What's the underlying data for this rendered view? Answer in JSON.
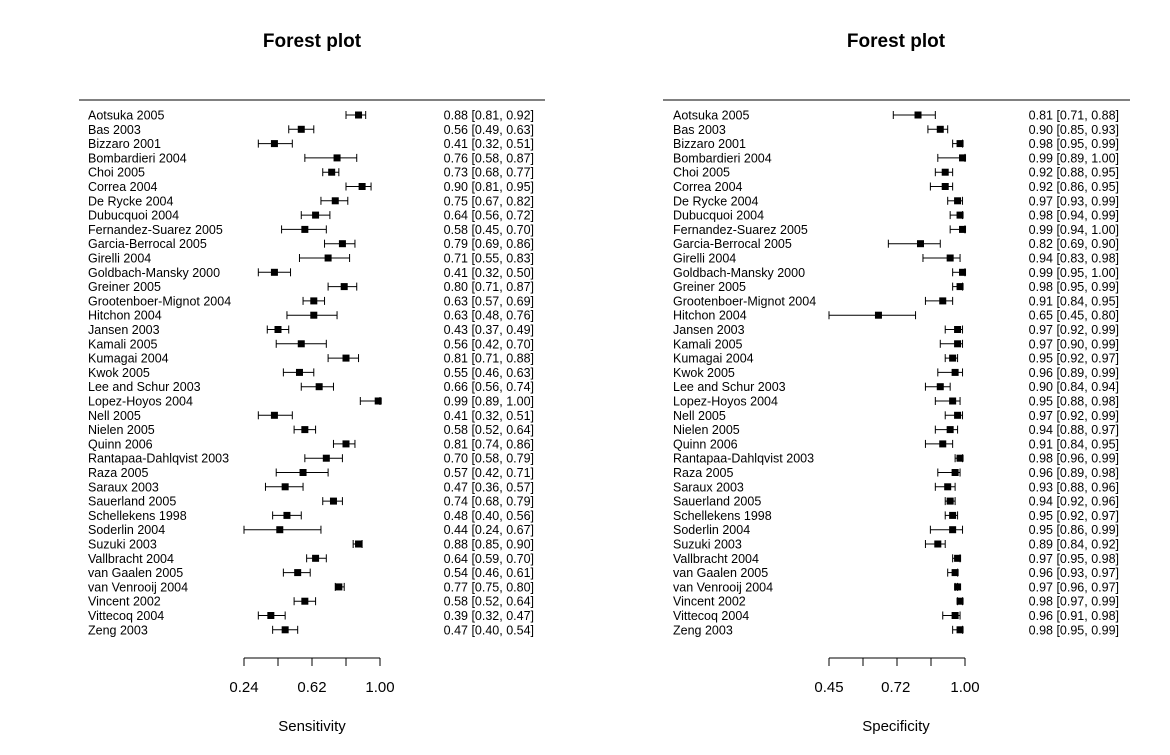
{
  "chart_data": [
    {
      "type": "forest",
      "title": "Forest plot",
      "xlabel": "Sensitivity",
      "xlim": [
        0.24,
        1.0
      ],
      "tick_labels": [
        "0.24",
        "0.62",
        "1.00"
      ],
      "tick_values": [
        0.24,
        0.43,
        0.62,
        0.81,
        1.0
      ],
      "studies": [
        {
          "name": "Aotsuka 2005",
          "est": 0.88,
          "lo": 0.81,
          "hi": 0.92,
          "label": "0.88 [0.81, 0.92]"
        },
        {
          "name": "Bas 2003",
          "est": 0.56,
          "lo": 0.49,
          "hi": 0.63,
          "label": "0.56 [0.49, 0.63]"
        },
        {
          "name": "Bizzaro 2001",
          "est": 0.41,
          "lo": 0.32,
          "hi": 0.51,
          "label": "0.41 [0.32, 0.51]"
        },
        {
          "name": "Bombardieri 2004",
          "est": 0.76,
          "lo": 0.58,
          "hi": 0.87,
          "label": "0.76 [0.58, 0.87]"
        },
        {
          "name": "Choi 2005",
          "est": 0.73,
          "lo": 0.68,
          "hi": 0.77,
          "label": "0.73 [0.68, 0.77]"
        },
        {
          "name": "Correa 2004",
          "est": 0.9,
          "lo": 0.81,
          "hi": 0.95,
          "label": "0.90 [0.81, 0.95]"
        },
        {
          "name": "De Rycke 2004",
          "est": 0.75,
          "lo": 0.67,
          "hi": 0.82,
          "label": "0.75 [0.67, 0.82]"
        },
        {
          "name": "Dubucquoi 2004",
          "est": 0.64,
          "lo": 0.56,
          "hi": 0.72,
          "label": "0.64 [0.56, 0.72]"
        },
        {
          "name": "Fernandez-Suarez 2005",
          "est": 0.58,
          "lo": 0.45,
          "hi": 0.7,
          "label": "0.58 [0.45, 0.70]"
        },
        {
          "name": "Garcia-Berrocal 2005",
          "est": 0.79,
          "lo": 0.69,
          "hi": 0.86,
          "label": "0.79 [0.69, 0.86]"
        },
        {
          "name": "Girelli 2004",
          "est": 0.71,
          "lo": 0.55,
          "hi": 0.83,
          "label": "0.71 [0.55, 0.83]"
        },
        {
          "name": "Goldbach-Mansky 2000",
          "est": 0.41,
          "lo": 0.32,
          "hi": 0.5,
          "label": "0.41 [0.32, 0.50]"
        },
        {
          "name": "Greiner 2005",
          "est": 0.8,
          "lo": 0.71,
          "hi": 0.87,
          "label": "0.80 [0.71, 0.87]"
        },
        {
          "name": "Grootenboer-Mignot 2004",
          "est": 0.63,
          "lo": 0.57,
          "hi": 0.69,
          "label": "0.63 [0.57, 0.69]"
        },
        {
          "name": "Hitchon 2004",
          "est": 0.63,
          "lo": 0.48,
          "hi": 0.76,
          "label": "0.63 [0.48, 0.76]"
        },
        {
          "name": "Jansen 2003",
          "est": 0.43,
          "lo": 0.37,
          "hi": 0.49,
          "label": "0.43 [0.37, 0.49]"
        },
        {
          "name": "Kamali 2005",
          "est": 0.56,
          "lo": 0.42,
          "hi": 0.7,
          "label": "0.56 [0.42, 0.70]"
        },
        {
          "name": "Kumagai 2004",
          "est": 0.81,
          "lo": 0.71,
          "hi": 0.88,
          "label": "0.81 [0.71, 0.88]"
        },
        {
          "name": "Kwok 2005",
          "est": 0.55,
          "lo": 0.46,
          "hi": 0.63,
          "label": "0.55 [0.46, 0.63]"
        },
        {
          "name": "Lee and Schur 2003",
          "est": 0.66,
          "lo": 0.56,
          "hi": 0.74,
          "label": "0.66 [0.56, 0.74]"
        },
        {
          "name": "Lopez-Hoyos 2004",
          "est": 0.99,
          "lo": 0.89,
          "hi": 1.0,
          "label": "0.99 [0.89, 1.00]"
        },
        {
          "name": "Nell 2005",
          "est": 0.41,
          "lo": 0.32,
          "hi": 0.51,
          "label": "0.41 [0.32, 0.51]"
        },
        {
          "name": "Nielen 2005",
          "est": 0.58,
          "lo": 0.52,
          "hi": 0.64,
          "label": "0.58 [0.52, 0.64]"
        },
        {
          "name": "Quinn 2006",
          "est": 0.81,
          "lo": 0.74,
          "hi": 0.86,
          "label": "0.81 [0.74, 0.86]"
        },
        {
          "name": "Rantapaa-Dahlqvist 2003",
          "est": 0.7,
          "lo": 0.58,
          "hi": 0.79,
          "label": "0.70 [0.58, 0.79]"
        },
        {
          "name": "Raza 2005",
          "est": 0.57,
          "lo": 0.42,
          "hi": 0.71,
          "label": "0.57 [0.42, 0.71]"
        },
        {
          "name": "Saraux 2003",
          "est": 0.47,
          "lo": 0.36,
          "hi": 0.57,
          "label": "0.47 [0.36, 0.57]"
        },
        {
          "name": "Sauerland 2005",
          "est": 0.74,
          "lo": 0.68,
          "hi": 0.79,
          "label": "0.74 [0.68, 0.79]"
        },
        {
          "name": "Schellekens 1998",
          "est": 0.48,
          "lo": 0.4,
          "hi": 0.56,
          "label": "0.48 [0.40, 0.56]"
        },
        {
          "name": "Soderlin 2004",
          "est": 0.44,
          "lo": 0.24,
          "hi": 0.67,
          "label": "0.44 [0.24, 0.67]"
        },
        {
          "name": "Suzuki 2003",
          "est": 0.88,
          "lo": 0.85,
          "hi": 0.9,
          "label": "0.88 [0.85, 0.90]"
        },
        {
          "name": "Vallbracht 2004",
          "est": 0.64,
          "lo": 0.59,
          "hi": 0.7,
          "label": "0.64 [0.59, 0.70]"
        },
        {
          "name": "van Gaalen 2005",
          "est": 0.54,
          "lo": 0.46,
          "hi": 0.61,
          "label": "0.54 [0.46, 0.61]"
        },
        {
          "name": "van Venrooij 2004",
          "est": 0.77,
          "lo": 0.75,
          "hi": 0.8,
          "label": "0.77 [0.75, 0.80]"
        },
        {
          "name": "Vincent 2002",
          "est": 0.58,
          "lo": 0.52,
          "hi": 0.64,
          "label": "0.58 [0.52, 0.64]"
        },
        {
          "name": "Vittecoq 2004",
          "est": 0.39,
          "lo": 0.32,
          "hi": 0.47,
          "label": "0.39 [0.32, 0.47]"
        },
        {
          "name": "Zeng 2003",
          "est": 0.47,
          "lo": 0.4,
          "hi": 0.54,
          "label": "0.47 [0.40, 0.54]"
        }
      ]
    },
    {
      "type": "forest",
      "title": "Forest plot",
      "xlabel": "Specificity",
      "xlim": [
        0.45,
        1.0
      ],
      "tick_labels": [
        "0.45",
        "0.72",
        "1.00"
      ],
      "tick_values": [
        0.45,
        0.5875,
        0.725,
        0.8625,
        1.0
      ],
      "studies": [
        {
          "name": "Aotsuka 2005",
          "est": 0.81,
          "lo": 0.71,
          "hi": 0.88,
          "label": "0.81 [0.71, 0.88]"
        },
        {
          "name": "Bas 2003",
          "est": 0.9,
          "lo": 0.85,
          "hi": 0.93,
          "label": "0.90 [0.85, 0.93]"
        },
        {
          "name": "Bizzaro 2001",
          "est": 0.98,
          "lo": 0.95,
          "hi": 0.99,
          "label": "0.98 [0.95, 0.99]"
        },
        {
          "name": "Bombardieri 2004",
          "est": 0.99,
          "lo": 0.89,
          "hi": 1.0,
          "label": "0.99 [0.89, 1.00]"
        },
        {
          "name": "Choi 2005",
          "est": 0.92,
          "lo": 0.88,
          "hi": 0.95,
          "label": "0.92 [0.88, 0.95]"
        },
        {
          "name": "Correa 2004",
          "est": 0.92,
          "lo": 0.86,
          "hi": 0.95,
          "label": "0.92 [0.86, 0.95]"
        },
        {
          "name": "De Rycke 2004",
          "est": 0.97,
          "lo": 0.93,
          "hi": 0.99,
          "label": "0.97 [0.93, 0.99]"
        },
        {
          "name": "Dubucquoi 2004",
          "est": 0.98,
          "lo": 0.94,
          "hi": 0.99,
          "label": "0.98 [0.94, 0.99]"
        },
        {
          "name": "Fernandez-Suarez 2005",
          "est": 0.99,
          "lo": 0.94,
          "hi": 1.0,
          "label": "0.99 [0.94, 1.00]"
        },
        {
          "name": "Garcia-Berrocal 2005",
          "est": 0.82,
          "lo": 0.69,
          "hi": 0.9,
          "label": "0.82 [0.69, 0.90]"
        },
        {
          "name": "Girelli 2004",
          "est": 0.94,
          "lo": 0.83,
          "hi": 0.98,
          "label": "0.94 [0.83, 0.98]"
        },
        {
          "name": "Goldbach-Mansky 2000",
          "est": 0.99,
          "lo": 0.95,
          "hi": 1.0,
          "label": "0.99 [0.95, 1.00]"
        },
        {
          "name": "Greiner 2005",
          "est": 0.98,
          "lo": 0.95,
          "hi": 0.99,
          "label": "0.98 [0.95, 0.99]"
        },
        {
          "name": "Grootenboer-Mignot 2004",
          "est": 0.91,
          "lo": 0.84,
          "hi": 0.95,
          "label": "0.91 [0.84, 0.95]"
        },
        {
          "name": "Hitchon 2004",
          "est": 0.65,
          "lo": 0.45,
          "hi": 0.8,
          "label": "0.65 [0.45, 0.80]"
        },
        {
          "name": "Jansen 2003",
          "est": 0.97,
          "lo": 0.92,
          "hi": 0.99,
          "label": "0.97 [0.92, 0.99]"
        },
        {
          "name": "Kamali 2005",
          "est": 0.97,
          "lo": 0.9,
          "hi": 0.99,
          "label": "0.97 [0.90, 0.99]"
        },
        {
          "name": "Kumagai 2004",
          "est": 0.95,
          "lo": 0.92,
          "hi": 0.97,
          "label": "0.95 [0.92, 0.97]"
        },
        {
          "name": "Kwok 2005",
          "est": 0.96,
          "lo": 0.89,
          "hi": 0.99,
          "label": "0.96 [0.89, 0.99]"
        },
        {
          "name": "Lee and Schur 2003",
          "est": 0.9,
          "lo": 0.84,
          "hi": 0.94,
          "label": "0.90 [0.84, 0.94]"
        },
        {
          "name": "Lopez-Hoyos 2004",
          "est": 0.95,
          "lo": 0.88,
          "hi": 0.98,
          "label": "0.95 [0.88, 0.98]"
        },
        {
          "name": "Nell 2005",
          "est": 0.97,
          "lo": 0.92,
          "hi": 0.99,
          "label": "0.97 [0.92, 0.99]"
        },
        {
          "name": "Nielen 2005",
          "est": 0.94,
          "lo": 0.88,
          "hi": 0.97,
          "label": "0.94 [0.88, 0.97]"
        },
        {
          "name": "Quinn 2006",
          "est": 0.91,
          "lo": 0.84,
          "hi": 0.95,
          "label": "0.91 [0.84, 0.95]"
        },
        {
          "name": "Rantapaa-Dahlqvist 2003",
          "est": 0.98,
          "lo": 0.96,
          "hi": 0.99,
          "label": "0.98 [0.96, 0.99]"
        },
        {
          "name": "Raza 2005",
          "est": 0.96,
          "lo": 0.89,
          "hi": 0.98,
          "label": "0.96 [0.89, 0.98]"
        },
        {
          "name": "Saraux 2003",
          "est": 0.93,
          "lo": 0.88,
          "hi": 0.96,
          "label": "0.93 [0.88, 0.96]"
        },
        {
          "name": "Sauerland 2005",
          "est": 0.94,
          "lo": 0.92,
          "hi": 0.96,
          "label": "0.94 [0.92, 0.96]"
        },
        {
          "name": "Schellekens 1998",
          "est": 0.95,
          "lo": 0.92,
          "hi": 0.97,
          "label": "0.95 [0.92, 0.97]"
        },
        {
          "name": "Soderlin 2004",
          "est": 0.95,
          "lo": 0.86,
          "hi": 0.99,
          "label": "0.95 [0.86, 0.99]"
        },
        {
          "name": "Suzuki 2003",
          "est": 0.89,
          "lo": 0.84,
          "hi": 0.92,
          "label": "0.89 [0.84, 0.92]"
        },
        {
          "name": "Vallbracht 2004",
          "est": 0.97,
          "lo": 0.95,
          "hi": 0.98,
          "label": "0.97 [0.95, 0.98]"
        },
        {
          "name": "van Gaalen 2005",
          "est": 0.96,
          "lo": 0.93,
          "hi": 0.97,
          "label": "0.96 [0.93, 0.97]"
        },
        {
          "name": "van Venrooij 2004",
          "est": 0.97,
          "lo": 0.96,
          "hi": 0.97,
          "label": "0.97 [0.96, 0.97]"
        },
        {
          "name": "Vincent 2002",
          "est": 0.98,
          "lo": 0.97,
          "hi": 0.99,
          "label": "0.98 [0.97, 0.99]"
        },
        {
          "name": "Vittecoq 2004",
          "est": 0.96,
          "lo": 0.91,
          "hi": 0.98,
          "label": "0.96 [0.91, 0.98]"
        },
        {
          "name": "Zeng 2003",
          "est": 0.98,
          "lo": 0.95,
          "hi": 0.99,
          "label": "0.98 [0.95, 0.99]"
        }
      ]
    }
  ]
}
